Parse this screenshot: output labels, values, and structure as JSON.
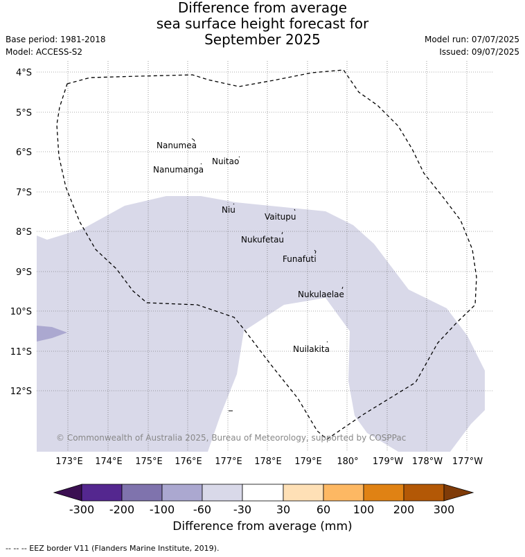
{
  "title": {
    "line1": "Difference from average",
    "line2": "sea surface height forecast for",
    "line3": "September 2025"
  },
  "meta_left": {
    "base_period": "Base period: 1981-2018",
    "model": "Model: ACCESS-S2"
  },
  "meta_right": {
    "model_run": "Model run: 07/07/2025",
    "issued": "Issued: 09/07/2025"
  },
  "map": {
    "lat_labels": [
      "4°S",
      "5°S",
      "6°S",
      "7°S",
      "8°S",
      "9°S",
      "10°S",
      "11°S",
      "12°S"
    ],
    "lon_labels": [
      "173°E",
      "174°E",
      "175°E",
      "176°E",
      "177°E",
      "178°E",
      "179°E",
      "180°",
      "179°W",
      "178°W",
      "177°W"
    ],
    "islands": [
      "Nanumea",
      "Nuitao",
      "Nanumanga",
      "Niu",
      "Vaitupu",
      "Nukufetau",
      "Funafuti",
      "Nukulaelae",
      "Nuilakita"
    ],
    "copyright": "© Commonwealth of Australia 2025, Bureau of Meteorology, supported by COSPPac",
    "colors": {
      "light_purple": "#d9d9e9",
      "mid_purple": "#aba8d0",
      "eez_line": "#000000"
    }
  },
  "colorbar": {
    "tick_labels": [
      "-300",
      "-200",
      "-100",
      "-60",
      "-30",
      "30",
      "60",
      "100",
      "200",
      "300"
    ],
    "colors": [
      "#3b0f52",
      "#54278f",
      "#7f73ad",
      "#aba8d0",
      "#d9d9e9",
      "#ffffff",
      "#fee0b6",
      "#fdb863",
      "#e08214",
      "#b35806",
      "#7f3b08"
    ],
    "title": "Difference from average (mm)"
  },
  "footnote": "-- -- -- EEZ border V11 (Flanders Marine Institute, 2019)."
}
